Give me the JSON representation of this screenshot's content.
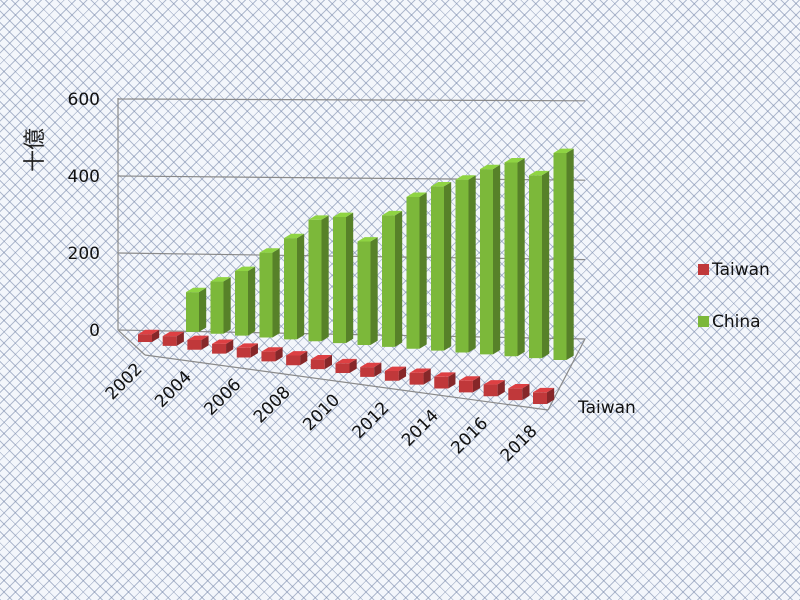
{
  "chart_data": {
    "type": "bar",
    "categories": [
      "2002",
      "2003",
      "2004",
      "2005",
      "2006",
      "2007",
      "2008",
      "2009",
      "2010",
      "2011",
      "2012",
      "2013",
      "2014",
      "2015",
      "2016",
      "2017",
      "2018"
    ],
    "x_tick_labels": [
      "2002",
      "2004",
      "2006",
      "2008",
      "2010",
      "2012",
      "2014",
      "2016",
      "2018"
    ],
    "series": [
      {
        "name": "Taiwan",
        "color": "#c0383a",
        "values": [
          20,
          25,
          25,
          25,
          25,
          25,
          25,
          25,
          25,
          25,
          25,
          30,
          30,
          30,
          30,
          30,
          30
        ]
      },
      {
        "name": "China",
        "color": "#7cb83a",
        "values": [
          0,
          100,
          130,
          160,
          210,
          250,
          300,
          310,
          250,
          320,
          370,
          400,
          420,
          450,
          470,
          440,
          500
        ]
      }
    ],
    "ylabel": "十億",
    "ylim": [
      0,
      600
    ],
    "y_ticks": [
      0,
      200,
      400,
      600
    ],
    "depth_axis_label": "Taiwan",
    "grid": true,
    "legend_position": "right"
  }
}
